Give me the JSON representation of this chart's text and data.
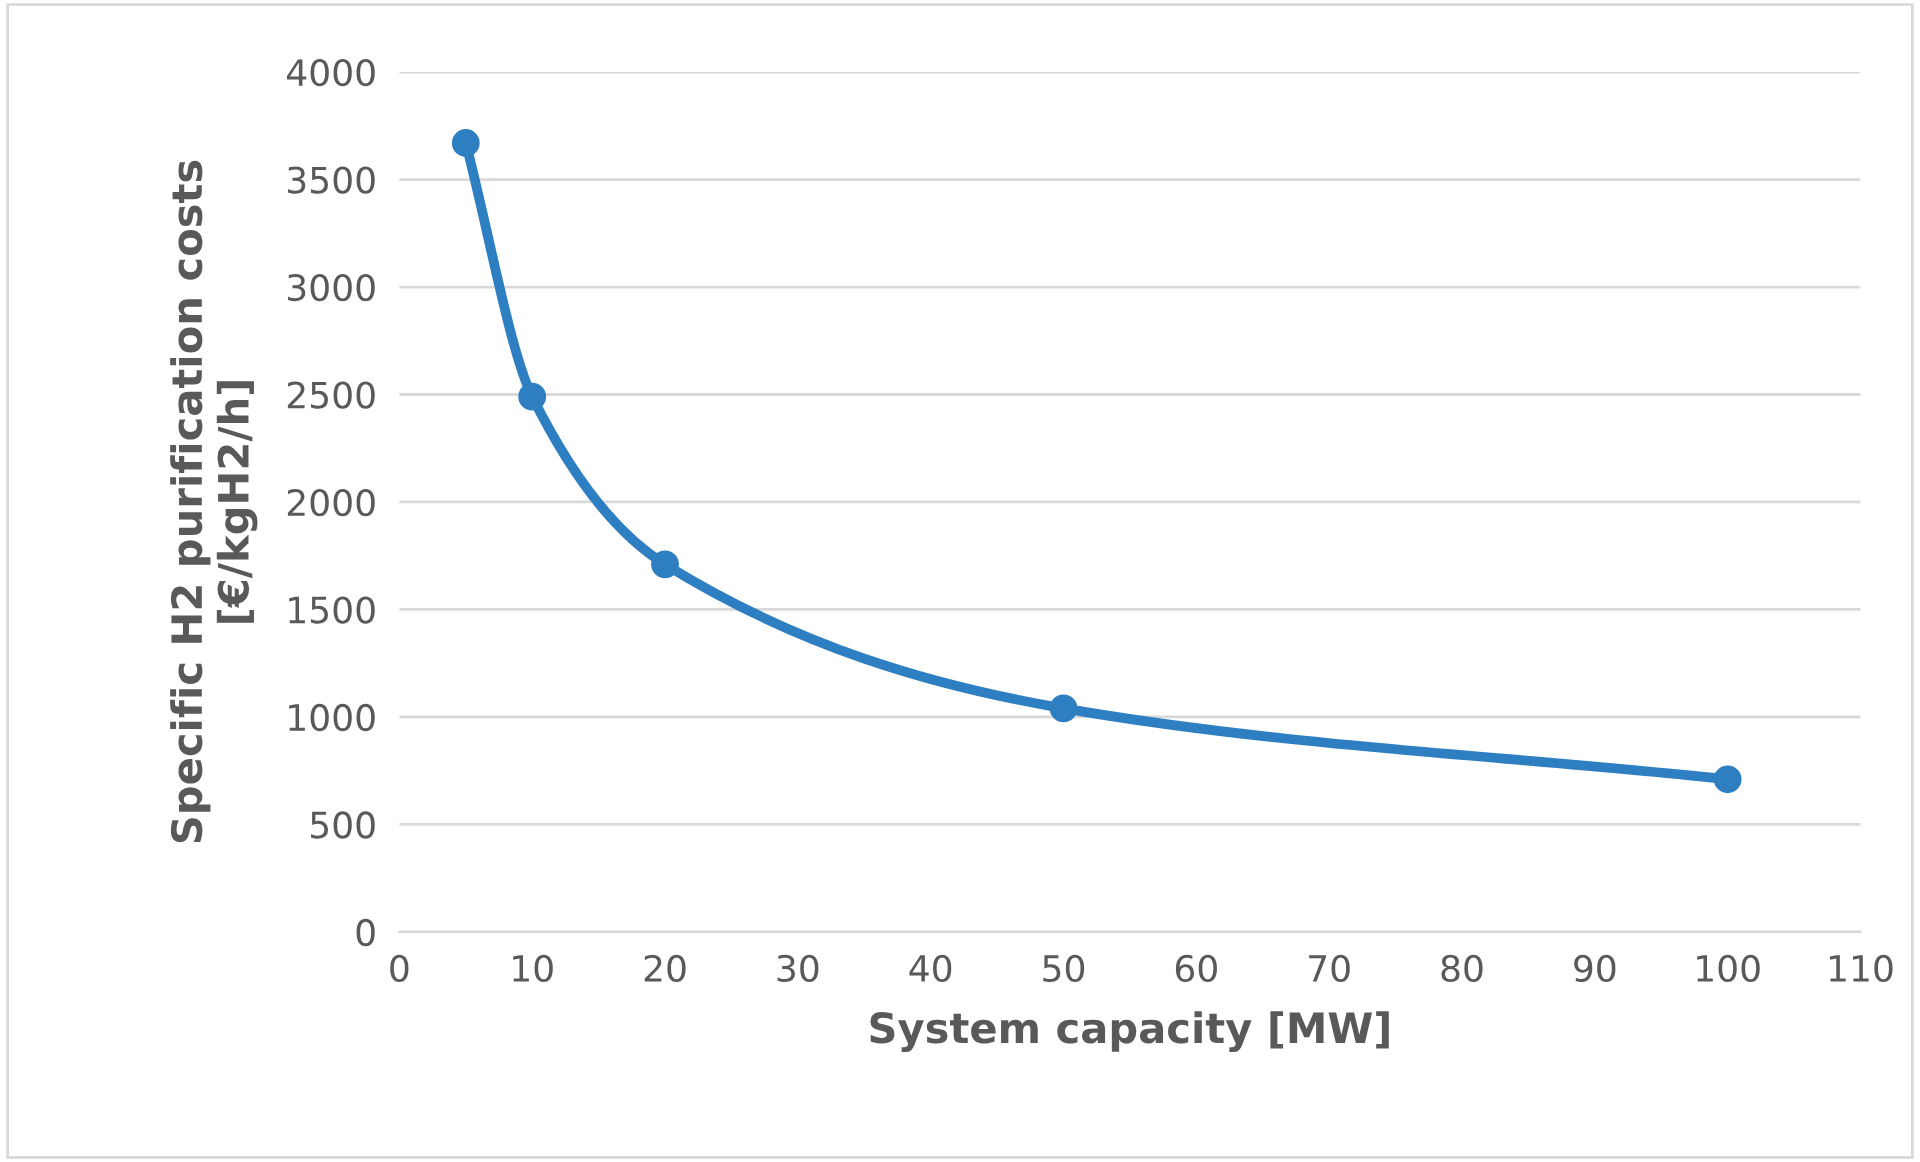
{
  "chart_data": {
    "type": "line",
    "xlabel": "System capacity [MW]",
    "ylabel": "Specific H2 purification costs\n[€/kgH2/h]",
    "x": [
      5,
      10,
      20,
      50,
      100
    ],
    "series": [
      {
        "color": "#2e7fc1",
        "values": [
          3670,
          2490,
          1710,
          1040,
          710
        ]
      }
    ],
    "xlim": [
      0,
      110
    ],
    "xticks": [
      0,
      10,
      20,
      30,
      40,
      50,
      60,
      70,
      80,
      90,
      100,
      110
    ],
    "ylim": [
      0,
      4000
    ],
    "yticks": [
      0,
      500,
      1000,
      1500,
      2000,
      2500,
      3000,
      3500,
      4000
    ],
    "grid": "y",
    "marker": "circle",
    "line_style": "solid",
    "legend": false
  }
}
